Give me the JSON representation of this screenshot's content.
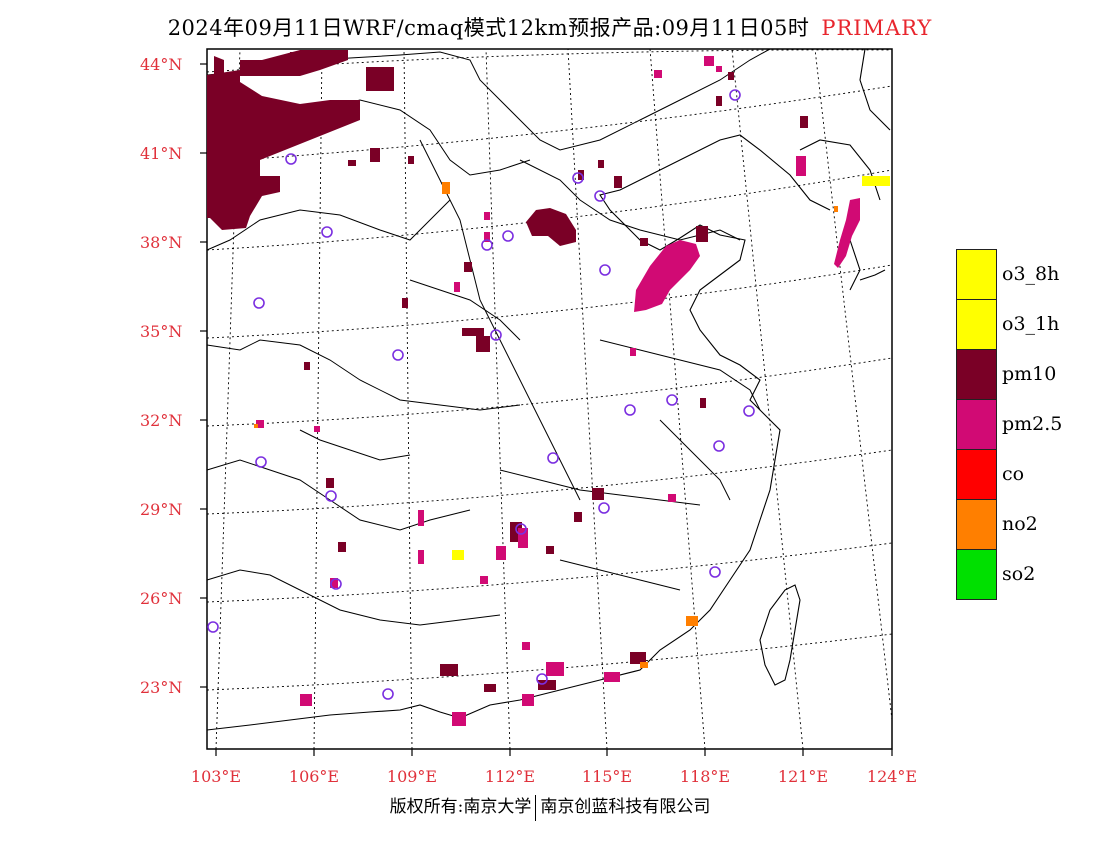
{
  "title": {
    "main": "2024年09月11日WRF/cmaq模式12km预报产品:09月11日05时",
    "tag": "PRIMARY"
  },
  "axes": {
    "lat_labels": [
      "44°N",
      "41°N",
      "38°N",
      "35°N",
      "32°N",
      "29°N",
      "26°N",
      "23°N"
    ],
    "lon_labels": [
      "103°E",
      "106°E",
      "109°E",
      "112°E",
      "115°E",
      "118°E",
      "121°E",
      "124°E"
    ]
  },
  "legend": {
    "items": [
      {
        "label": "o3_8h",
        "color": "#ffff00"
      },
      {
        "label": "o3_1h",
        "color": "#ffff00"
      },
      {
        "label": "pm10",
        "color": "#7a0026"
      },
      {
        "label": "pm2.5",
        "color": "#d10a74"
      },
      {
        "label": "co",
        "color": "#ff0000"
      },
      {
        "label": "no2",
        "color": "#ff7f00"
      },
      {
        "label": "so2",
        "color": "#00e000"
      }
    ]
  },
  "colors": {
    "pm10": "#7a0026",
    "pm25": "#d10a74",
    "no2": "#ff7f00",
    "o3": "#ffff00",
    "station": "#7b2fe0",
    "axis_label": "#e0313b"
  },
  "footer": {
    "left": "版权所有:南京大学",
    "right": "南京创蓝科技有限公司"
  }
}
